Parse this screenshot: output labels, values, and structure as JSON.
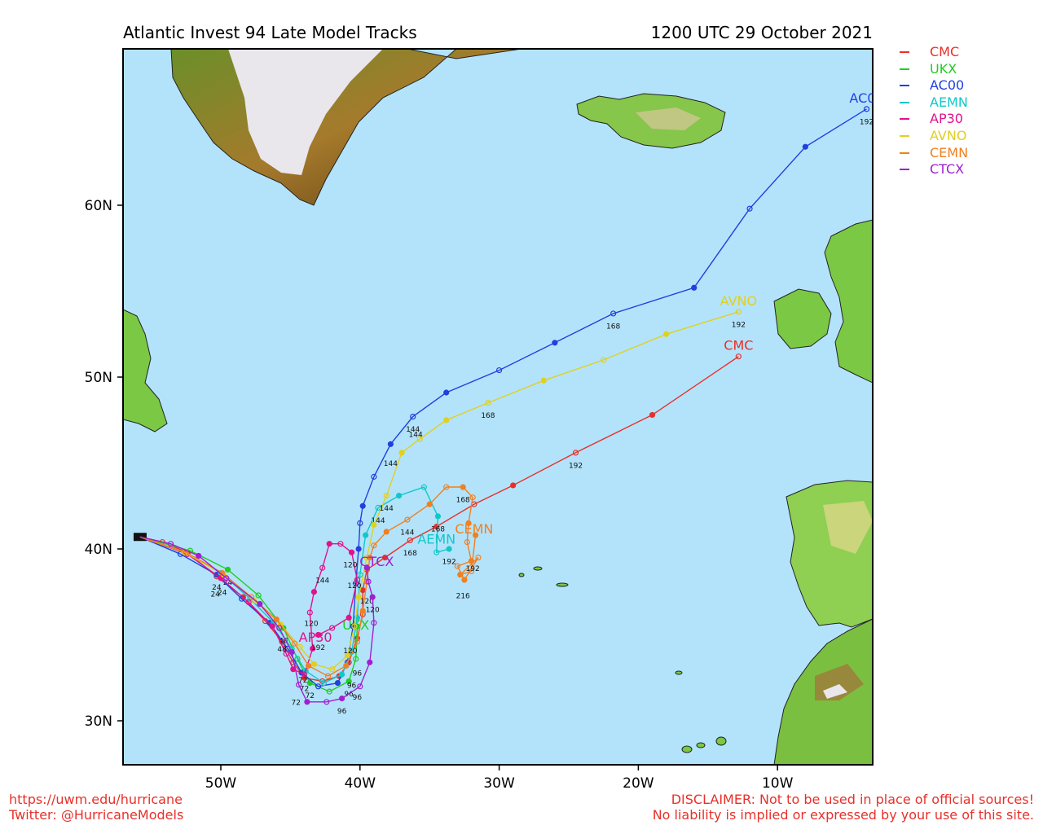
{
  "header": {
    "title": "Atlantic Invest 94 Late Model Tracks",
    "datetime": "1200 UTC 29 October 2021"
  },
  "axes": {
    "lon_ticks": [
      "50W",
      "40W",
      "30W",
      "20W",
      "10W"
    ],
    "lat_ticks": [
      "60N",
      "50N",
      "40N",
      "30N"
    ]
  },
  "legend": [
    {
      "name": "CMC",
      "color": "#e8302a"
    },
    {
      "name": "UKX",
      "color": "#22cc22"
    },
    {
      "name": "AC00",
      "color": "#2040e0"
    },
    {
      "name": "AEMN",
      "color": "#10c8c8"
    },
    {
      "name": "AP30",
      "color": "#e0128c"
    },
    {
      "name": "AVNO",
      "color": "#e0d020"
    },
    {
      "name": "CEMN",
      "color": "#f08020"
    },
    {
      "name": "CTCX",
      "color": "#a020d0"
    }
  ],
  "tracks": [
    {
      "name": "CMC",
      "color": "#e8302a",
      "end_label": "CMC",
      "points": [
        [
          -55.8,
          40.7
        ],
        [
          -54.2,
          40.4
        ],
        [
          -52.4,
          39.8
        ],
        [
          -50.3,
          38.4
        ],
        [
          -48.4,
          37.2
        ],
        [
          -46.8,
          35.8
        ],
        [
          -45.6,
          34.6
        ],
        [
          -44.8,
          33.4
        ],
        [
          -44.0,
          32.5
        ],
        [
          -42.7,
          32.3
        ],
        [
          -41.5,
          32.6
        ],
        [
          -40.8,
          33.4
        ],
        [
          -40.2,
          34.8
        ],
        [
          -39.8,
          36.2
        ],
        [
          -39.8,
          37.6
        ],
        [
          -39.5,
          38.8
        ],
        [
          -38.2,
          39.5
        ],
        [
          -36.4,
          40.5
        ],
        [
          -34.5,
          41.3
        ],
        [
          -31.8,
          42.6
        ],
        [
          -29.0,
          43.7
        ],
        [
          -24.5,
          45.6
        ],
        [
          -19.0,
          47.8
        ],
        [
          -12.8,
          51.2
        ]
      ],
      "labels": [
        {
          "text": "24",
          "lon": -50.3,
          "lat": 38.1
        },
        {
          "text": "72",
          "lon": -44.0,
          "lat": 32.2
        },
        {
          "text": "120",
          "lon": -39.5,
          "lat": 37.3
        },
        {
          "text": "168",
          "lon": -36.4,
          "lat": 40.1
        },
        {
          "text": "192",
          "lon": -24.5,
          "lat": 45.2
        }
      ]
    },
    {
      "name": "UKX",
      "color": "#22cc22",
      "end_label": "UKX",
      "points": [
        [
          -55.8,
          40.7
        ],
        [
          -52.2,
          39.9
        ],
        [
          -49.5,
          38.8
        ],
        [
          -47.3,
          37.3
        ],
        [
          -45.5,
          35.4
        ],
        [
          -44.5,
          33.6
        ],
        [
          -43.6,
          32.2
        ],
        [
          -42.2,
          31.7
        ],
        [
          -40.8,
          32.3
        ],
        [
          -40.3,
          33.6
        ],
        [
          -40.2,
          35.5
        ]
      ],
      "labels": [
        {
          "text": "24",
          "lon": -49.5,
          "lat": 38.4
        },
        {
          "text": "48",
          "lon": -45.5,
          "lat": 35.0
        },
        {
          "text": "72",
          "lon": -43.6,
          "lat": 31.8
        },
        {
          "text": "96",
          "lon": -40.8,
          "lat": 31.9
        }
      ]
    },
    {
      "name": "AC00",
      "color": "#2040e0",
      "end_label": "AC00",
      "points": [
        [
          -55.8,
          40.7
        ],
        [
          -52.9,
          39.7
        ],
        [
          -50.3,
          38.5
        ],
        [
          -48.5,
          37.1
        ],
        [
          -46.5,
          35.7
        ],
        [
          -45.2,
          34.2
        ],
        [
          -44.2,
          32.8
        ],
        [
          -43.0,
          32.0
        ],
        [
          -41.6,
          32.2
        ],
        [
          -40.9,
          33.4
        ],
        [
          -40.5,
          35.5
        ],
        [
          -40.3,
          38.0
        ],
        [
          -40.1,
          40.0
        ],
        [
          -40.0,
          41.5
        ],
        [
          -39.8,
          42.5
        ],
        [
          -39.0,
          44.2
        ],
        [
          -37.8,
          46.1
        ],
        [
          -36.2,
          47.7
        ],
        [
          -33.8,
          49.1
        ],
        [
          -30.0,
          50.4
        ],
        [
          -26.0,
          52.0
        ],
        [
          -21.8,
          53.7
        ],
        [
          -16.0,
          55.2
        ],
        [
          -12.0,
          59.8
        ],
        [
          -8.0,
          63.4
        ],
        [
          -3.6,
          65.6
        ]
      ],
      "labels": [
        {
          "text": "144",
          "lon": -36.2,
          "lat": 47.3
        },
        {
          "text": "168",
          "lon": -21.8,
          "lat": 53.3
        },
        {
          "text": "192",
          "lon": -3.6,
          "lat": 65.2
        }
      ]
    },
    {
      "name": "AEMN",
      "color": "#10c8c8",
      "end_label": "AEMN",
      "points": [
        [
          -55.8,
          40.7
        ],
        [
          -52.6,
          39.8
        ],
        [
          -50.0,
          38.6
        ],
        [
          -47.9,
          37.1
        ],
        [
          -46.2,
          35.7
        ],
        [
          -44.9,
          34.2
        ],
        [
          -43.9,
          32.9
        ],
        [
          -42.6,
          32.2
        ],
        [
          -41.3,
          32.7
        ],
        [
          -40.6,
          34.0
        ],
        [
          -40.2,
          36.0
        ],
        [
          -40.0,
          38.5
        ],
        [
          -39.6,
          40.8
        ],
        [
          -38.7,
          42.4
        ],
        [
          -37.2,
          43.1
        ],
        [
          -35.4,
          43.6
        ],
        [
          -34.4,
          41.9
        ],
        [
          -34.5,
          39.8
        ],
        [
          -33.6,
          40.0
        ]
      ],
      "labels": [
        {
          "text": "144",
          "lon": -38.7,
          "lat": 42.0
        },
        {
          "text": "168",
          "lon": -34.4,
          "lat": 41.5
        },
        {
          "text": "192",
          "lon": -33.6,
          "lat": 39.6
        }
      ]
    },
    {
      "name": "AP30",
      "color": "#e0128c",
      "end_label": "AP30",
      "points": [
        [
          -55.8,
          40.7
        ],
        [
          -52.4,
          39.7
        ],
        [
          -50.0,
          38.3
        ],
        [
          -48.0,
          36.9
        ],
        [
          -46.3,
          35.5
        ],
        [
          -45.3,
          33.9
        ],
        [
          -44.8,
          33.0
        ],
        [
          -44.0,
          32.7
        ],
        [
          -43.4,
          34.2
        ],
        [
          -43.6,
          36.3
        ],
        [
          -43.3,
          37.5
        ],
        [
          -42.7,
          38.9
        ],
        [
          -42.2,
          40.3
        ],
        [
          -41.4,
          40.3
        ],
        [
          -40.6,
          39.8
        ],
        [
          -40.2,
          38.2
        ],
        [
          -40.8,
          36.0
        ],
        [
          -42.0,
          35.4
        ],
        [
          -43.0,
          35.0
        ]
      ],
      "labels": [
        {
          "text": "144",
          "lon": -42.7,
          "lat": 38.5
        },
        {
          "text": "192",
          "lon": -43.0,
          "lat": 34.6
        }
      ]
    },
    {
      "name": "AVNO",
      "color": "#e0d020",
      "end_label": "AVNO",
      "points": [
        [
          -55.8,
          40.7
        ],
        [
          -52.6,
          39.8
        ],
        [
          -49.8,
          38.5
        ],
        [
          -47.6,
          37.0
        ],
        [
          -45.7,
          35.6
        ],
        [
          -44.3,
          34.3
        ],
        [
          -43.3,
          33.3
        ],
        [
          -42.0,
          33.0
        ],
        [
          -40.9,
          33.8
        ],
        [
          -40.4,
          35.5
        ],
        [
          -40.1,
          37.2
        ],
        [
          -39.5,
          39.5
        ],
        [
          -39.0,
          41.4
        ],
        [
          -38.1,
          43.1
        ],
        [
          -37.0,
          45.6
        ],
        [
          -35.7,
          46.4
        ],
        [
          -33.8,
          47.5
        ],
        [
          -30.8,
          48.5
        ],
        [
          -26.8,
          49.8
        ],
        [
          -22.5,
          51.0
        ],
        [
          -18.0,
          52.5
        ],
        [
          -12.8,
          53.8
        ]
      ],
      "labels": [
        {
          "text": "120",
          "lon": -43.5,
          "lat": 36.0
        },
        {
          "text": "144",
          "lon": -38.1,
          "lat": 42.7
        },
        {
          "text": "168",
          "lon": -30.8,
          "lat": 48.1
        },
        {
          "text": "192",
          "lon": -12.8,
          "lat": 53.4
        }
      ]
    },
    {
      "name": "CEMN",
      "color": "#f08020",
      "end_label": "CEMN",
      "points": [
        [
          -55.8,
          40.7
        ],
        [
          -52.5,
          39.8
        ],
        [
          -49.9,
          38.6
        ],
        [
          -47.8,
          37.2
        ],
        [
          -46.0,
          35.9
        ],
        [
          -44.7,
          34.5
        ],
        [
          -43.7,
          33.2
        ],
        [
          -42.3,
          32.6
        ],
        [
          -41.0,
          33.2
        ],
        [
          -40.2,
          34.6
        ],
        [
          -39.8,
          36.4
        ],
        [
          -39.5,
          38.1
        ],
        [
          -39.3,
          39.5
        ],
        [
          -39.0,
          40.2
        ],
        [
          -38.1,
          41.0
        ],
        [
          -36.6,
          41.7
        ],
        [
          -35.0,
          42.6
        ],
        [
          -33.8,
          43.6
        ],
        [
          -32.6,
          43.6
        ],
        [
          -31.9,
          43.0
        ],
        [
          -32.2,
          41.5
        ],
        [
          -32.3,
          40.4
        ],
        [
          -32.0,
          39.3
        ],
        [
          -33.0,
          39.0
        ],
        [
          -32.5,
          38.2
        ],
        [
          -31.5,
          39.5
        ],
        [
          -32.8,
          38.5
        ],
        [
          -32.0,
          38.7
        ],
        [
          -31.7,
          40.8
        ]
      ],
      "labels": [
        {
          "text": "144",
          "lon": -36.6,
          "lat": 41.3
        },
        {
          "text": "168",
          "lon": -32.6,
          "lat": 43.2
        },
        {
          "text": "192",
          "lon": -31.9,
          "lat": 39.2
        },
        {
          "text": "216",
          "lon": -32.6,
          "lat": 37.6
        }
      ]
    },
    {
      "name": "CTCX",
      "color": "#a020d0",
      "end_label": "CTCX",
      "points": [
        [
          -55.8,
          40.7
        ],
        [
          -53.6,
          40.3
        ],
        [
          -51.6,
          39.6
        ],
        [
          -49.6,
          38.3
        ],
        [
          -47.2,
          36.8
        ],
        [
          -45.8,
          35.4
        ],
        [
          -44.9,
          34.0
        ],
        [
          -44.4,
          32.1
        ],
        [
          -43.8,
          31.1
        ],
        [
          -42.4,
          31.1
        ],
        [
          -41.3,
          31.3
        ],
        [
          -40.0,
          32.0
        ],
        [
          -39.3,
          33.4
        ],
        [
          -39.0,
          35.7
        ],
        [
          -39.1,
          37.2
        ],
        [
          -39.4,
          38.1
        ],
        [
          -39.5,
          38.9
        ]
      ],
      "labels": [
        {
          "text": "72",
          "lon": -44.6,
          "lat": 31.4
        },
        {
          "text": "96",
          "lon": -41.3,
          "lat": 30.9
        },
        {
          "text": "120",
          "lon": -39.1,
          "lat": 36.8
        }
      ]
    }
  ],
  "extra_labels": [
    {
      "text": "24",
      "lon": -50.4,
      "lat": 37.7
    },
    {
      "text": "24",
      "lon": -49.9,
      "lat": 37.8
    },
    {
      "text": "48",
      "lon": -45.6,
      "lat": 34.5
    },
    {
      "text": "72",
      "lon": -44.1,
      "lat": 32.7
    },
    {
      "text": "96",
      "lon": -40.2,
      "lat": 31.7
    },
    {
      "text": "96",
      "lon": -40.6,
      "lat": 32.4
    },
    {
      "text": "96",
      "lon": -40.2,
      "lat": 33.1
    },
    {
      "text": "120",
      "lon": -40.4,
      "lat": 38.2
    },
    {
      "text": "120",
      "lon": -40.7,
      "lat": 39.4
    },
    {
      "text": "120",
      "lon": -40.7,
      "lat": 34.4
    },
    {
      "text": "144",
      "lon": -37.8,
      "lat": 45.3
    },
    {
      "text": "144",
      "lon": -36.0,
      "lat": 47.0
    }
  ],
  "footer": {
    "left_line1": "https://uwm.edu/hurricane",
    "left_line2": "Twitter: @HurricaneModels",
    "right_line1": "DISCLAIMER: Not to be used in place of official sources!",
    "right_line2": "No liability is implied or expressed by your use of this site."
  },
  "colors": {
    "ocean": "#b3e3fb",
    "land_green": "#7bc844",
    "ice": "#e9e6ec",
    "greenland_brown": "#9a6a1e"
  }
}
